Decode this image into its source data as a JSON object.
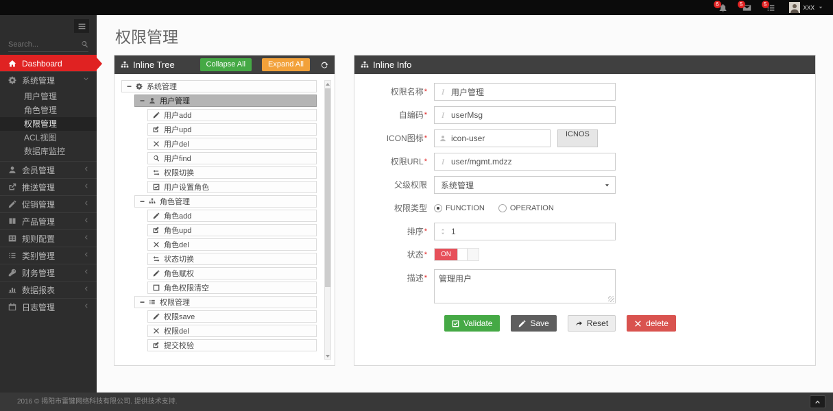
{
  "topbar": {
    "badges": [
      {
        "icon": "bell",
        "name": "notifications",
        "count": "6"
      },
      {
        "icon": "envelope",
        "name": "messages",
        "count": "5"
      },
      {
        "icon": "list",
        "name": "tasks",
        "count": "5"
      }
    ],
    "user": {
      "name": "xxx"
    }
  },
  "sidebar": {
    "search_placeholder": "Search...",
    "menu": [
      {
        "name": "dashboard",
        "icon": "home",
        "label": "Dashboard",
        "active": true
      },
      {
        "name": "system-mgmt",
        "icon": "gear",
        "label": "系统管理",
        "expanded": true,
        "children": [
          "用户管理",
          "角色管理",
          "权限管理",
          "ACL视图",
          "数据库监控"
        ],
        "active_child": "权限管理"
      },
      {
        "name": "member-mgmt",
        "icon": "user",
        "label": "会员管理"
      },
      {
        "name": "push-mgmt",
        "icon": "share",
        "label": "推送管理"
      },
      {
        "name": "promo-mgmt",
        "icon": "pencil",
        "label": "促销管理"
      },
      {
        "name": "product-mgmt",
        "icon": "book",
        "label": "产品管理"
      },
      {
        "name": "rule-config",
        "icon": "table",
        "label": "规则配置"
      },
      {
        "name": "category-mgmt",
        "icon": "list",
        "label": "类别管理"
      },
      {
        "name": "finance-mgmt",
        "icon": "key",
        "label": "财务管理"
      },
      {
        "name": "data-report",
        "icon": "chart",
        "label": "数据报表"
      },
      {
        "name": "log-mgmt",
        "icon": "calendar",
        "label": "日志管理"
      }
    ]
  },
  "main": {
    "title": "权限管理"
  },
  "tree_panel": {
    "title": "Inline Tree",
    "collapse_all": "Collapse All",
    "expand_all": "Expand All",
    "nodes": [
      {
        "level": 0,
        "expander": true,
        "icon": "gear",
        "label": "系统管理"
      },
      {
        "level": 1,
        "expander": true,
        "icon": "user",
        "label": "用户管理",
        "selected": true
      },
      {
        "level": 2,
        "icon": "pencil",
        "label": "用户add"
      },
      {
        "level": 2,
        "icon": "edit",
        "label": "用户upd"
      },
      {
        "level": 2,
        "icon": "x",
        "label": "用户del"
      },
      {
        "level": 2,
        "icon": "search",
        "label": "用户find"
      },
      {
        "level": 2,
        "icon": "retweet",
        "label": "权限切换"
      },
      {
        "level": 2,
        "icon": "check-square",
        "label": "用户设置角色"
      },
      {
        "level": 1,
        "expander": true,
        "icon": "sitemap",
        "label": "角色管理"
      },
      {
        "level": 2,
        "icon": "pencil",
        "label": "角色add"
      },
      {
        "level": 2,
        "icon": "edit",
        "label": "角色upd"
      },
      {
        "level": 2,
        "icon": "x",
        "label": "角色del"
      },
      {
        "level": 2,
        "icon": "retweet",
        "label": "状态切换"
      },
      {
        "level": 2,
        "icon": "pencil",
        "label": "角色赋权"
      },
      {
        "level": 2,
        "icon": "square",
        "label": "角色权限清空"
      },
      {
        "level": 1,
        "expander": true,
        "icon": "list",
        "label": "权限管理"
      },
      {
        "level": 2,
        "icon": "pencil",
        "label": "权限save"
      },
      {
        "level": 2,
        "icon": "x",
        "label": "权限del"
      },
      {
        "level": 2,
        "icon": "edit",
        "label": "提交校验"
      }
    ]
  },
  "info_panel": {
    "title": "Inline Info",
    "rows": [
      {
        "name": "perm-name",
        "label": "权限名称",
        "required": true,
        "type": "input",
        "icon": "italic",
        "value": "用户管理"
      },
      {
        "name": "perm-code",
        "label": "自编码",
        "required": true,
        "type": "input",
        "icon": "italic",
        "value": "userMsg"
      },
      {
        "name": "icon",
        "label": "ICON图标",
        "required": true,
        "type": "input-button",
        "icon": "user",
        "value": "icon-user",
        "button": "ICNOS"
      },
      {
        "name": "perm-url",
        "label": "权限URL",
        "required": true,
        "type": "input",
        "icon": "italic",
        "value": "user/mgmt.mdzz"
      },
      {
        "name": "parent-perm",
        "label": "父级权限",
        "required": false,
        "type": "select",
        "value": "系统管理"
      },
      {
        "name": "perm-type",
        "label": "权限类型",
        "required": false,
        "type": "radios",
        "options": [
          {
            "label": "FUNCTION",
            "checked": true
          },
          {
            "label": "OPERATION",
            "checked": false
          }
        ]
      },
      {
        "name": "sort",
        "label": "排序",
        "required": true,
        "type": "input",
        "icon": "sort",
        "value": "1"
      },
      {
        "name": "status",
        "label": "状态",
        "required": true,
        "type": "toggle",
        "value": "ON"
      },
      {
        "name": "description",
        "label": "描述",
        "required": true,
        "type": "textarea",
        "value": "管理用户"
      }
    ],
    "buttons": [
      {
        "name": "validate",
        "label": "Validate",
        "icon": "check-square",
        "style": "green"
      },
      {
        "name": "save",
        "label": "Save",
        "icon": "pencil",
        "style": "dark"
      },
      {
        "name": "reset",
        "label": "Reset",
        "icon": "reply",
        "style": "light"
      },
      {
        "name": "delete",
        "label": "delete",
        "icon": "x",
        "style": "red"
      }
    ]
  },
  "footer": {
    "copyright": "2016 © 揭阳市雷键网络科技有限公司. 提供技术支持."
  },
  "colors": {
    "accent_red": "#e02222",
    "green": "#45a945",
    "orange": "#f2a13a",
    "toggle_red": "#e7505a",
    "danger": "#d9534f",
    "panel_header": "#404040"
  }
}
